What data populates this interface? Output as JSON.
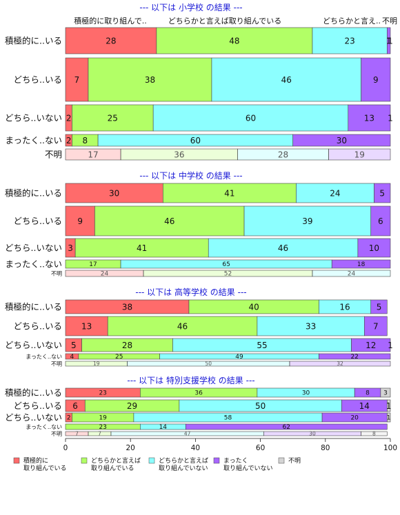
{
  "chart_data": {
    "type": "bar",
    "orientation": "horizontal-stacked",
    "top_labels": [
      "積極的に取り組んで..",
      "どちらかと言えば取り組んでいる",
      "どちらかと言え..",
      "不明"
    ],
    "legend": [
      {
        "line1": "積極的に",
        "line2": "取り組んでいる",
        "color": "#ff6b6b"
      },
      {
        "line1": "どちらかと言えば",
        "line2": "取り組んでいる",
        "color": "#b2ff66"
      },
      {
        "line1": "どちらかと言えば",
        "line2": "取り組んでいない",
        "color": "#8cffff"
      },
      {
        "line1": "まったく",
        "line2": "取り組んでいない",
        "color": "#a866ff"
      },
      {
        "line1": "不明",
        "line2": "",
        "color": "#d4d4d4"
      }
    ],
    "xaxis": {
      "ticks": [
        0,
        20,
        40,
        60,
        80,
        100
      ],
      "xlim": [
        0,
        100
      ]
    },
    "panels": [
      {
        "title": "--- 以下は 小学校 の結果 ---",
        "rows": [
          {
            "label": "積極的に..いる",
            "values": [
              28,
              48,
              23,
              1,
              1
            ],
            "labels": [
              "28",
              "48",
              "23",
              "1",
              "1"
            ]
          },
          {
            "label": "どちら..いる",
            "values": [
              7,
              38,
              46,
              9,
              0
            ],
            "labels": [
              "7",
              "38",
              "46",
              "9",
              ""
            ]
          },
          {
            "label": "どちら..いない",
            "values": [
              2,
              25,
              60,
              13,
              1
            ],
            "labels": [
              "2",
              "25",
              "60",
              "13",
              "1"
            ]
          },
          {
            "label": "まったく..ない",
            "values": [
              2,
              8,
              60,
              30,
              0
            ],
            "labels": [
              "2",
              "8",
              "60",
              "30",
              ""
            ]
          },
          {
            "label": "不明",
            "values": [
              17,
              36,
              28,
              19,
              0
            ],
            "labels": [
              "17",
              "36",
              "28",
              "19",
              ""
            ]
          }
        ]
      },
      {
        "title": "--- 以下は 中学校 の結果 ---",
        "rows": [
          {
            "label": "積極的に..いる",
            "values": [
              30,
              41,
              24,
              5,
              0
            ],
            "labels": [
              "30",
              "41",
              "24",
              "5",
              ""
            ]
          },
          {
            "label": "どちら..いる",
            "values": [
              9,
              46,
              39,
              6,
              0
            ],
            "labels": [
              "9",
              "46",
              "39",
              "6",
              ""
            ]
          },
          {
            "label": "どちら..いない",
            "values": [
              3,
              41,
              46,
              10,
              0
            ],
            "labels": [
              "3",
              "41",
              "46",
              "10",
              ""
            ]
          },
          {
            "label": "まったく..ない",
            "values": [
              0,
              17,
              65,
              18,
              0
            ],
            "labels": [
              "",
              "17",
              "65",
              "18",
              ""
            ]
          },
          {
            "label": "不明",
            "values": [
              24,
              52,
              24,
              0,
              0
            ],
            "labels": [
              "24",
              "52",
              "24",
              "",
              ""
            ]
          }
        ]
      },
      {
        "title": "--- 以下は 高等学校 の結果 ---",
        "rows": [
          {
            "label": "積極的に..いる",
            "values": [
              38,
              40,
              16,
              5,
              0
            ],
            "labels": [
              "38",
              "40",
              "16",
              "5",
              ""
            ]
          },
          {
            "label": "どちら..いる",
            "values": [
              13,
              46,
              33,
              7,
              0
            ],
            "labels": [
              "13",
              "46",
              "33",
              "7",
              ""
            ]
          },
          {
            "label": "どちら..いない",
            "values": [
              5,
              28,
              55,
              12,
              1
            ],
            "labels": [
              "5",
              "28",
              "55",
              "12",
              "1"
            ]
          },
          {
            "label": "まったく..ない",
            "values": [
              4,
              25,
              49,
              22,
              0
            ],
            "labels": [
              "4",
              "25",
              "49",
              "22",
              ""
            ]
          },
          {
            "label": "不明",
            "values": [
              0,
              19,
              50,
              32,
              0
            ],
            "labels": [
              "",
              "19",
              "50",
              "32",
              ""
            ]
          }
        ]
      },
      {
        "title": "--- 以下は 特別支援学校 の結果 ---",
        "rows": [
          {
            "label": "積極的に..いる",
            "values": [
              23,
              36,
              30,
              8,
              3
            ],
            "labels": [
              "23",
              "36",
              "30",
              "8",
              "3"
            ]
          },
          {
            "label": "どちら..いる",
            "values": [
              6,
              29,
              50,
              14,
              1
            ],
            "labels": [
              "6",
              "29",
              "50",
              "14",
              "1"
            ]
          },
          {
            "label": "どちら..いない",
            "values": [
              2,
              19,
              58,
              20,
              1
            ],
            "labels": [
              "2",
              "19",
              "58",
              "20",
              "1"
            ]
          },
          {
            "label": "まったく..ない",
            "values": [
              0,
              23,
              14,
              62,
              0
            ],
            "labels": [
              "",
              "23",
              "14",
              "62",
              ""
            ]
          },
          {
            "label": "不明",
            "values": [
              7,
              7,
              47,
              30,
              8
            ],
            "labels": [
              "7",
              "7",
              "47",
              "30",
              "8"
            ]
          }
        ]
      }
    ]
  }
}
